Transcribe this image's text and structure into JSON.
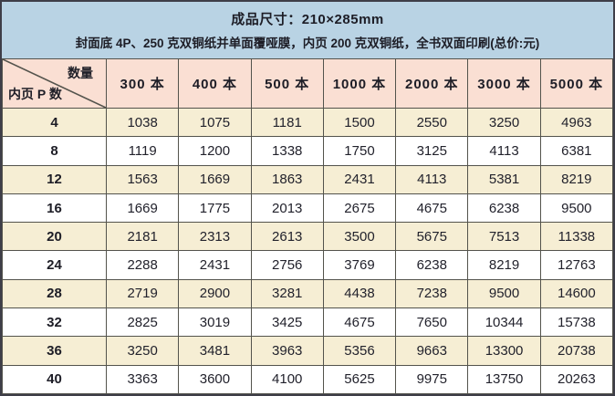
{
  "title_block": {
    "line1": "成品尺寸：210×285mm",
    "line2": "封面底 4P、250 克双铜纸并单面覆哑膜，内页 200 克双铜纸，全书双面印刷(总价:元)"
  },
  "chart_data": {
    "type": "table",
    "title": "成品尺寸：210×285mm",
    "subtitle": "封面底 4P、250 克双铜纸并单面覆哑膜，内页 200 克双铜纸，全书双面印刷(总价:元)",
    "corner_top_label": "数量",
    "corner_bottom_label": "内页 P 数",
    "columns": [
      "300 本",
      "400 本",
      "500 本",
      "1000 本",
      "2000 本",
      "3000 本",
      "5000 本"
    ],
    "row_labels": [
      "4",
      "8",
      "12",
      "16",
      "20",
      "24",
      "28",
      "32",
      "36",
      "40"
    ],
    "values": [
      [
        1038,
        1075,
        1181,
        1500,
        2550,
        3250,
        4963
      ],
      [
        1119,
        1200,
        1338,
        1750,
        3125,
        4113,
        6381
      ],
      [
        1563,
        1669,
        1863,
        2431,
        4113,
        5381,
        8219
      ],
      [
        1669,
        1775,
        2013,
        2675,
        4675,
        6238,
        9500
      ],
      [
        2181,
        2313,
        2613,
        3500,
        5675,
        7513,
        11338
      ],
      [
        2288,
        2431,
        2756,
        3769,
        6238,
        8219,
        12763
      ],
      [
        2719,
        2900,
        3281,
        4438,
        7238,
        9500,
        14600
      ],
      [
        2825,
        3019,
        3425,
        4675,
        7650,
        10344,
        15738
      ],
      [
        3250,
        3481,
        3963,
        5356,
        9663,
        13300,
        20738
      ],
      [
        3363,
        3600,
        4100,
        5625,
        9975,
        13750,
        20263
      ]
    ]
  },
  "colors": {
    "banner_bg": "#b9d3e4",
    "header_row_bg": "#fadfd3",
    "row_alt_bg": "#f6eed4",
    "row_bg": "#ffffff",
    "border": "#53534c",
    "outer_border": "#3e3e48",
    "text": "#1d1d26"
  }
}
